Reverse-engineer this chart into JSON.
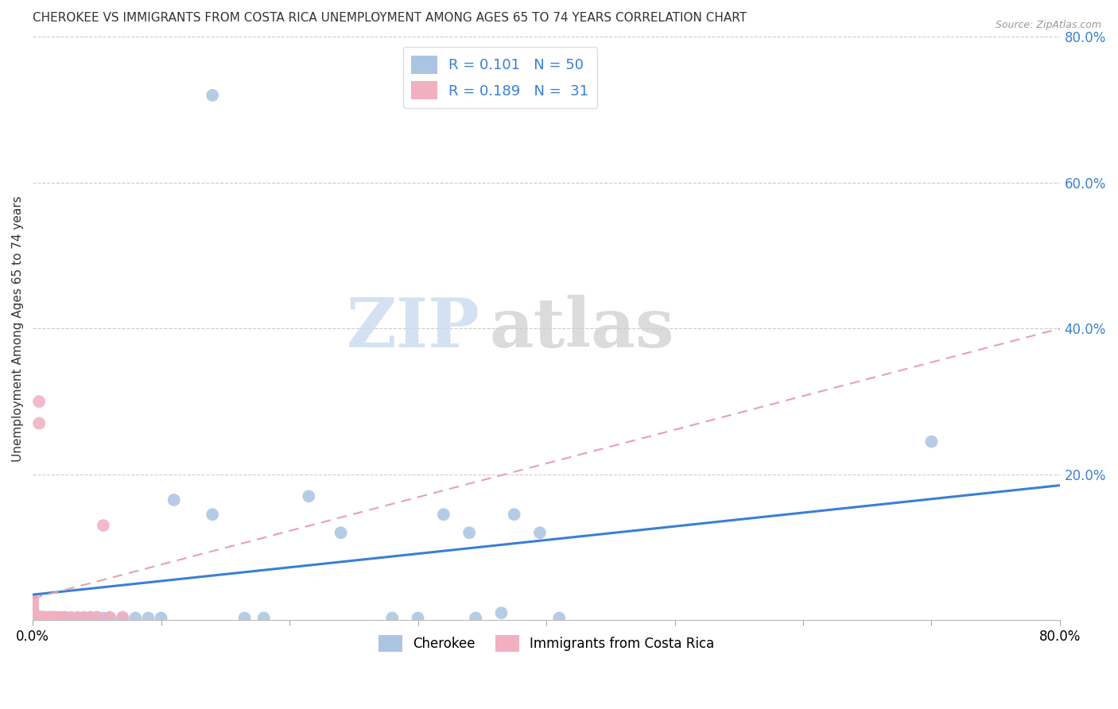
{
  "title": "CHEROKEE VS IMMIGRANTS FROM COSTA RICA UNEMPLOYMENT AMONG AGES 65 TO 74 YEARS CORRELATION CHART",
  "source": "Source: ZipAtlas.com",
  "ylabel": "Unemployment Among Ages 65 to 74 years",
  "xlim": [
    0.0,
    0.8
  ],
  "ylim": [
    0.0,
    0.8
  ],
  "watermark_zip": "ZIP",
  "watermark_atlas": "atlas",
  "legend_blue_r": "0.101",
  "legend_blue_n": "50",
  "legend_pink_r": "0.189",
  "legend_pink_n": "31",
  "legend_bottom": [
    "Cherokee",
    "Immigrants from Costa Rica"
  ],
  "blue_color": "#aac4e2",
  "pink_color": "#f2afc0",
  "blue_line_color": "#3a7fd5",
  "pink_line_color": "#e06080",
  "pink_dash_color": "#e8a0b0",
  "grid_color": "#cccccc",
  "blue_scatter": [
    [
      0.003,
      0.005
    ],
    [
      0.005,
      0.005
    ],
    [
      0.006,
      0.003
    ],
    [
      0.007,
      0.002
    ],
    [
      0.008,
      0.003
    ],
    [
      0.009,
      0.004
    ],
    [
      0.01,
      0.003
    ],
    [
      0.01,
      0.002
    ],
    [
      0.011,
      0.003
    ],
    [
      0.012,
      0.003
    ],
    [
      0.013,
      0.004
    ],
    [
      0.014,
      0.003
    ],
    [
      0.015,
      0.003
    ],
    [
      0.016,
      0.003
    ],
    [
      0.017,
      0.004
    ],
    [
      0.018,
      0.003
    ],
    [
      0.019,
      0.003
    ],
    [
      0.02,
      0.003
    ],
    [
      0.022,
      0.004
    ],
    [
      0.023,
      0.003
    ],
    [
      0.025,
      0.004
    ],
    [
      0.028,
      0.003
    ],
    [
      0.03,
      0.003
    ],
    [
      0.035,
      0.003
    ],
    [
      0.04,
      0.003
    ],
    [
      0.045,
      0.004
    ],
    [
      0.05,
      0.004
    ],
    [
      0.055,
      0.003
    ],
    [
      0.06,
      0.003
    ],
    [
      0.07,
      0.003
    ],
    [
      0.08,
      0.003
    ],
    [
      0.09,
      0.003
    ],
    [
      0.1,
      0.003
    ],
    [
      0.11,
      0.165
    ],
    [
      0.14,
      0.145
    ],
    [
      0.165,
      0.003
    ],
    [
      0.18,
      0.003
    ],
    [
      0.215,
      0.17
    ],
    [
      0.24,
      0.12
    ],
    [
      0.28,
      0.003
    ],
    [
      0.3,
      0.003
    ],
    [
      0.32,
      0.145
    ],
    [
      0.34,
      0.12
    ],
    [
      0.345,
      0.003
    ],
    [
      0.365,
      0.01
    ],
    [
      0.375,
      0.145
    ],
    [
      0.395,
      0.12
    ],
    [
      0.41,
      0.003
    ],
    [
      0.7,
      0.245
    ],
    [
      0.14,
      0.72
    ]
  ],
  "pink_scatter": [
    [
      0.0,
      0.003
    ],
    [
      0.0,
      0.005
    ],
    [
      0.0,
      0.007
    ],
    [
      0.0,
      0.009
    ],
    [
      0.0,
      0.011
    ],
    [
      0.0,
      0.014
    ],
    [
      0.0,
      0.017
    ],
    [
      0.0,
      0.02
    ],
    [
      0.0,
      0.024
    ],
    [
      0.0,
      0.028
    ],
    [
      0.003,
      0.005
    ],
    [
      0.004,
      0.004
    ],
    [
      0.005,
      0.004
    ],
    [
      0.006,
      0.004
    ],
    [
      0.008,
      0.004
    ],
    [
      0.01,
      0.004
    ],
    [
      0.012,
      0.004
    ],
    [
      0.015,
      0.004
    ],
    [
      0.018,
      0.004
    ],
    [
      0.02,
      0.004
    ],
    [
      0.025,
      0.004
    ],
    [
      0.03,
      0.004
    ],
    [
      0.035,
      0.004
    ],
    [
      0.04,
      0.004
    ],
    [
      0.045,
      0.004
    ],
    [
      0.05,
      0.004
    ],
    [
      0.055,
      0.13
    ],
    [
      0.06,
      0.004
    ],
    [
      0.07,
      0.004
    ],
    [
      0.005,
      0.27
    ],
    [
      0.005,
      0.3
    ]
  ],
  "blue_trend_x": [
    0.0,
    0.8
  ],
  "blue_trend_y": [
    0.035,
    0.185
  ],
  "pink_trend_x": [
    0.0,
    0.8
  ],
  "pink_trend_y": [
    0.03,
    0.4
  ]
}
